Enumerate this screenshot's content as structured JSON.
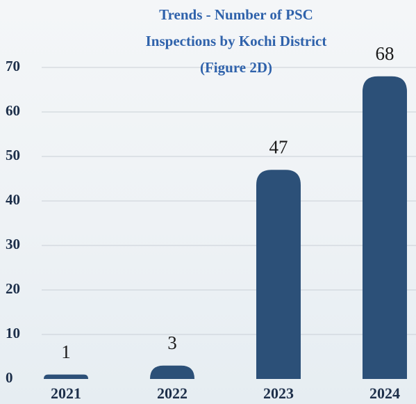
{
  "chart_data": {
    "type": "bar",
    "title": "Trends - Number of PSC Inspections by Kochi District (Figure 2D)",
    "categories": [
      "2021",
      "2022",
      "2023",
      "2024"
    ],
    "values": [
      1,
      3,
      47,
      68
    ],
    "color": "#2c5078",
    "ylim": [
      0,
      70
    ],
    "yticks": [
      0,
      10,
      20,
      30,
      40,
      50,
      60,
      70
    ],
    "grid": true
  }
}
